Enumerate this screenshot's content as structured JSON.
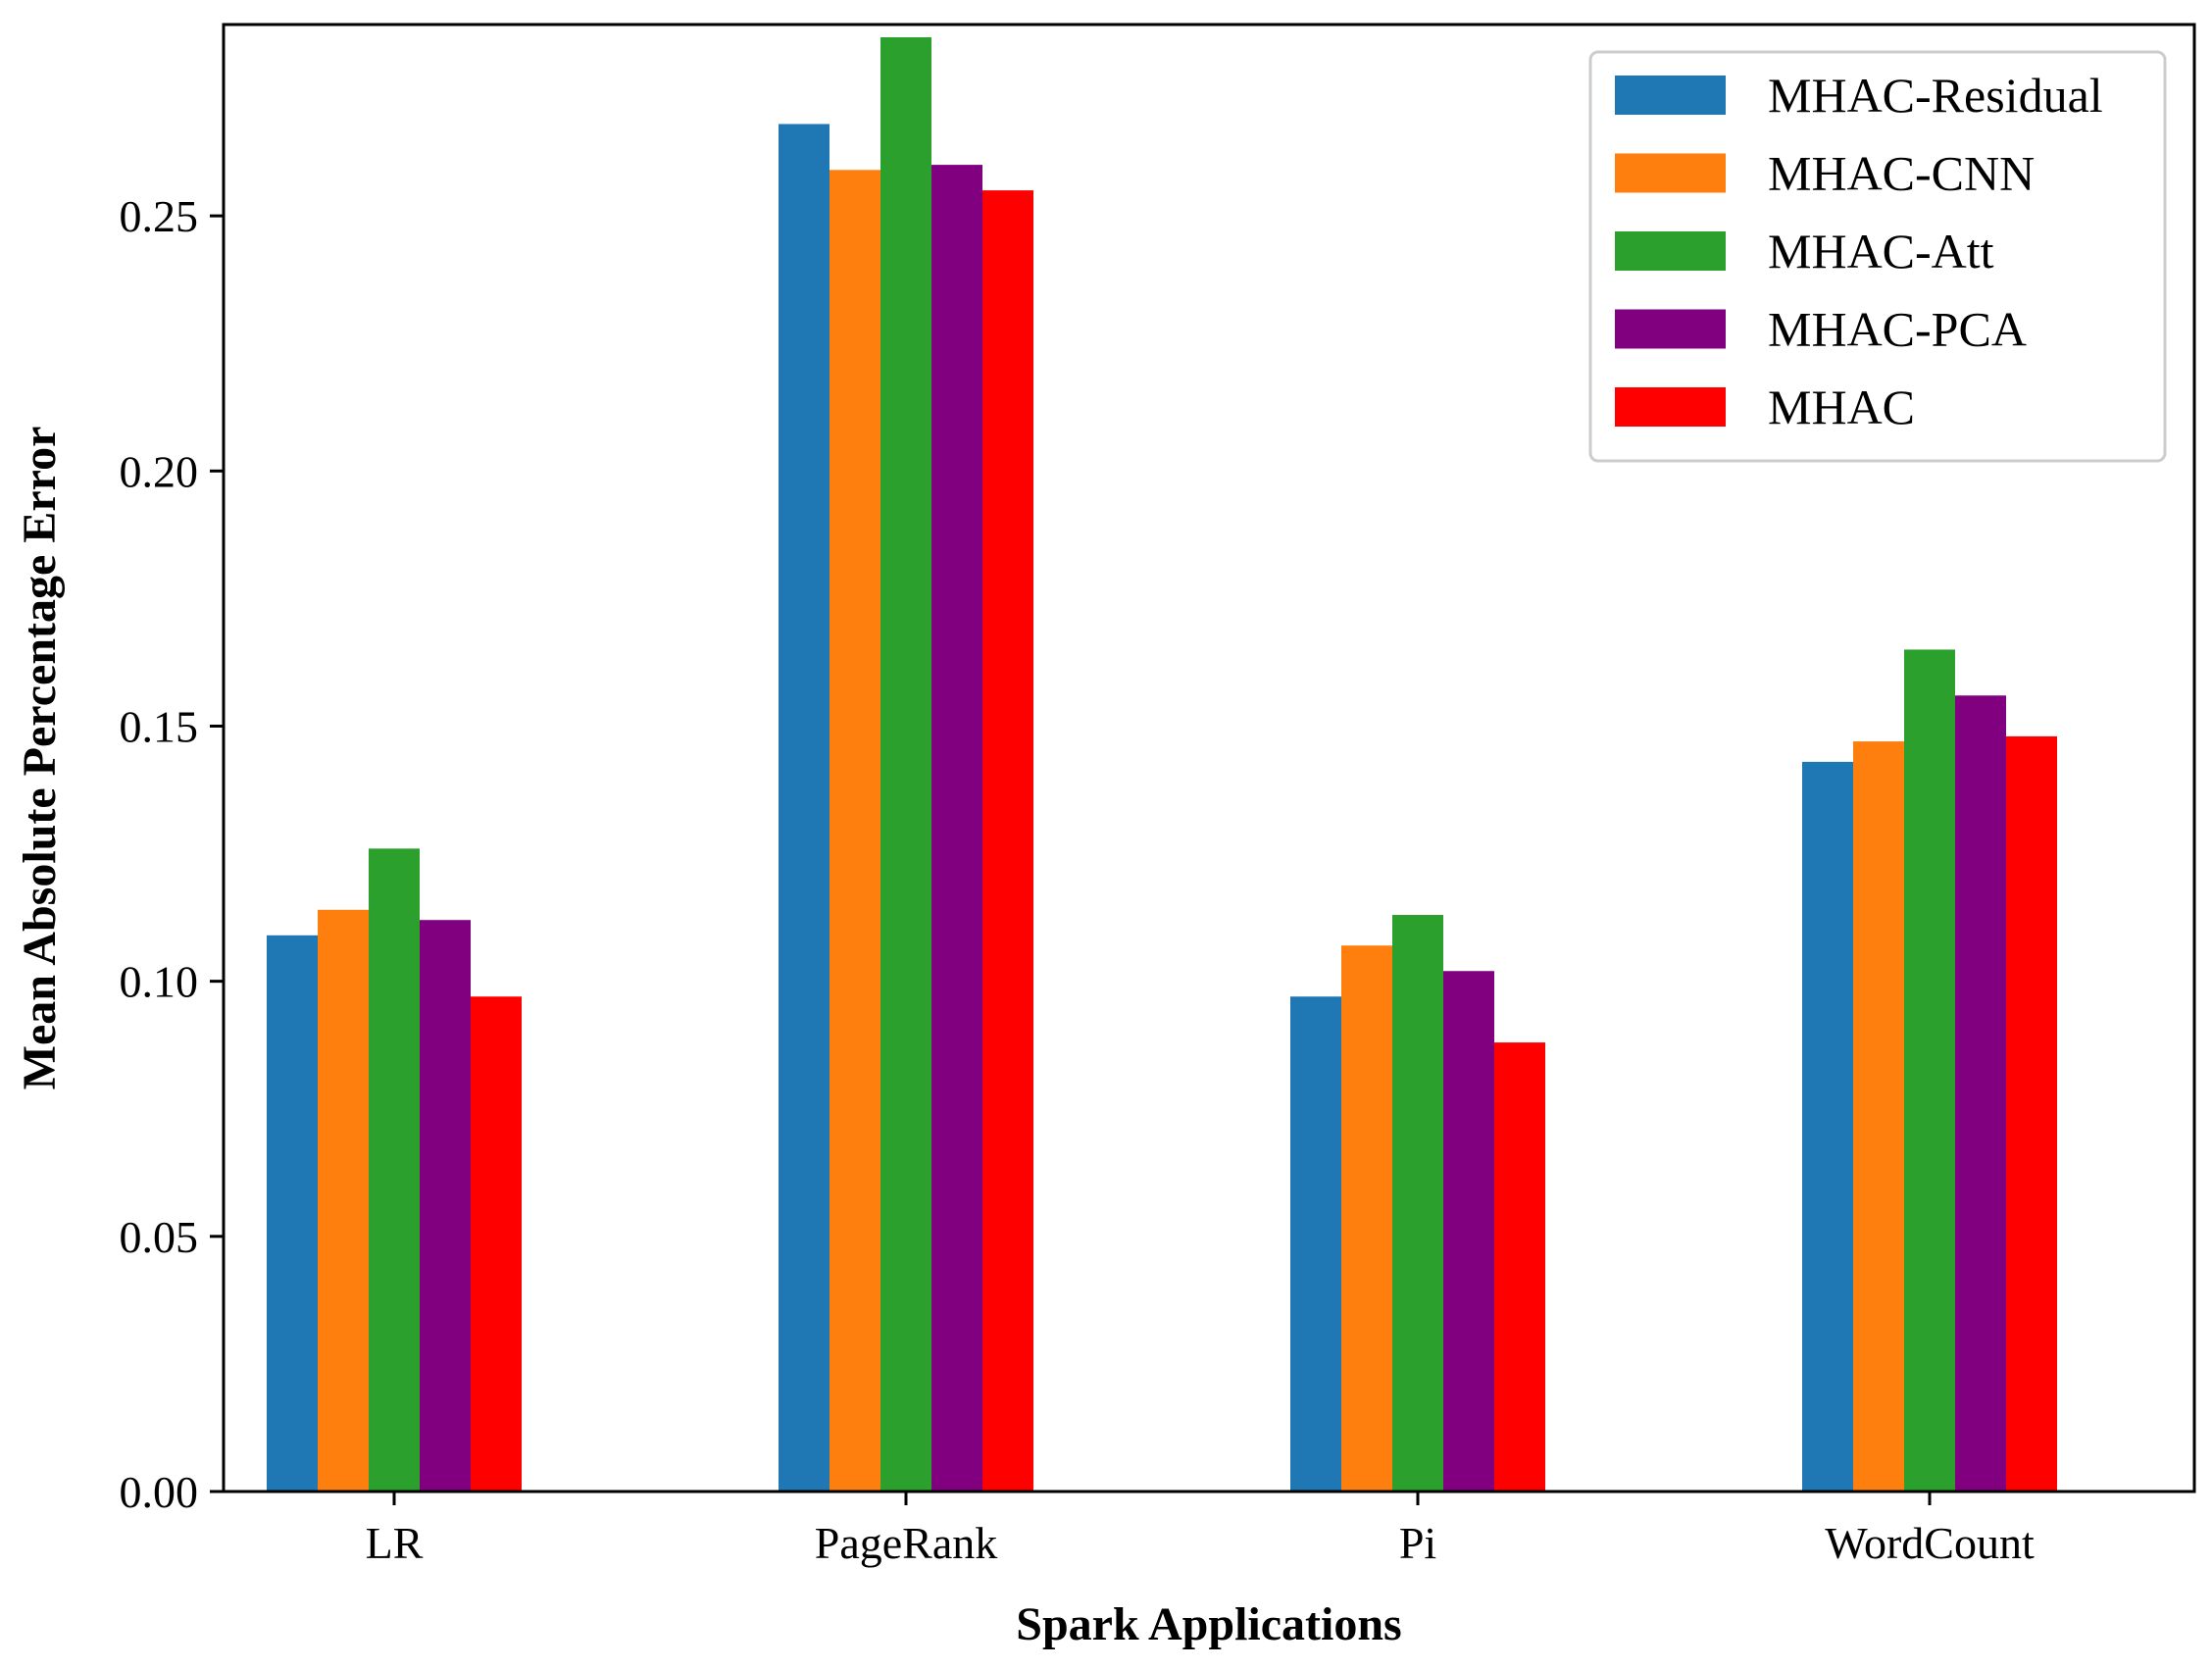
{
  "chart_data": {
    "type": "bar",
    "title": "",
    "xlabel": "Spark Applications",
    "ylabel": "Mean Absolute Percentage Error",
    "ylim": [
      0,
      0.2875
    ],
    "yticks": [
      "0.00",
      "0.05",
      "0.10",
      "0.15",
      "0.20",
      "0.25"
    ],
    "grid": false,
    "legend_position": "top-right",
    "categories": [
      "LR",
      "PageRank",
      "Pi",
      "WordCount"
    ],
    "series": [
      {
        "name": "MHAC-Residual",
        "color": "#1f77b4",
        "values": [
          0.109,
          0.268,
          0.097,
          0.143
        ]
      },
      {
        "name": "MHAC-CNN",
        "color": "#ff7f0e",
        "values": [
          0.114,
          0.259,
          0.107,
          0.147
        ]
      },
      {
        "name": "MHAC-Att",
        "color": "#2ca02c",
        "values": [
          0.126,
          0.285,
          0.113,
          0.165
        ]
      },
      {
        "name": "MHAC-PCA",
        "color": "#800080",
        "values": [
          0.112,
          0.26,
          0.102,
          0.156
        ]
      },
      {
        "name": "MHAC",
        "color": "#ff0000",
        "values": [
          0.097,
          0.255,
          0.088,
          0.148
        ]
      }
    ]
  }
}
